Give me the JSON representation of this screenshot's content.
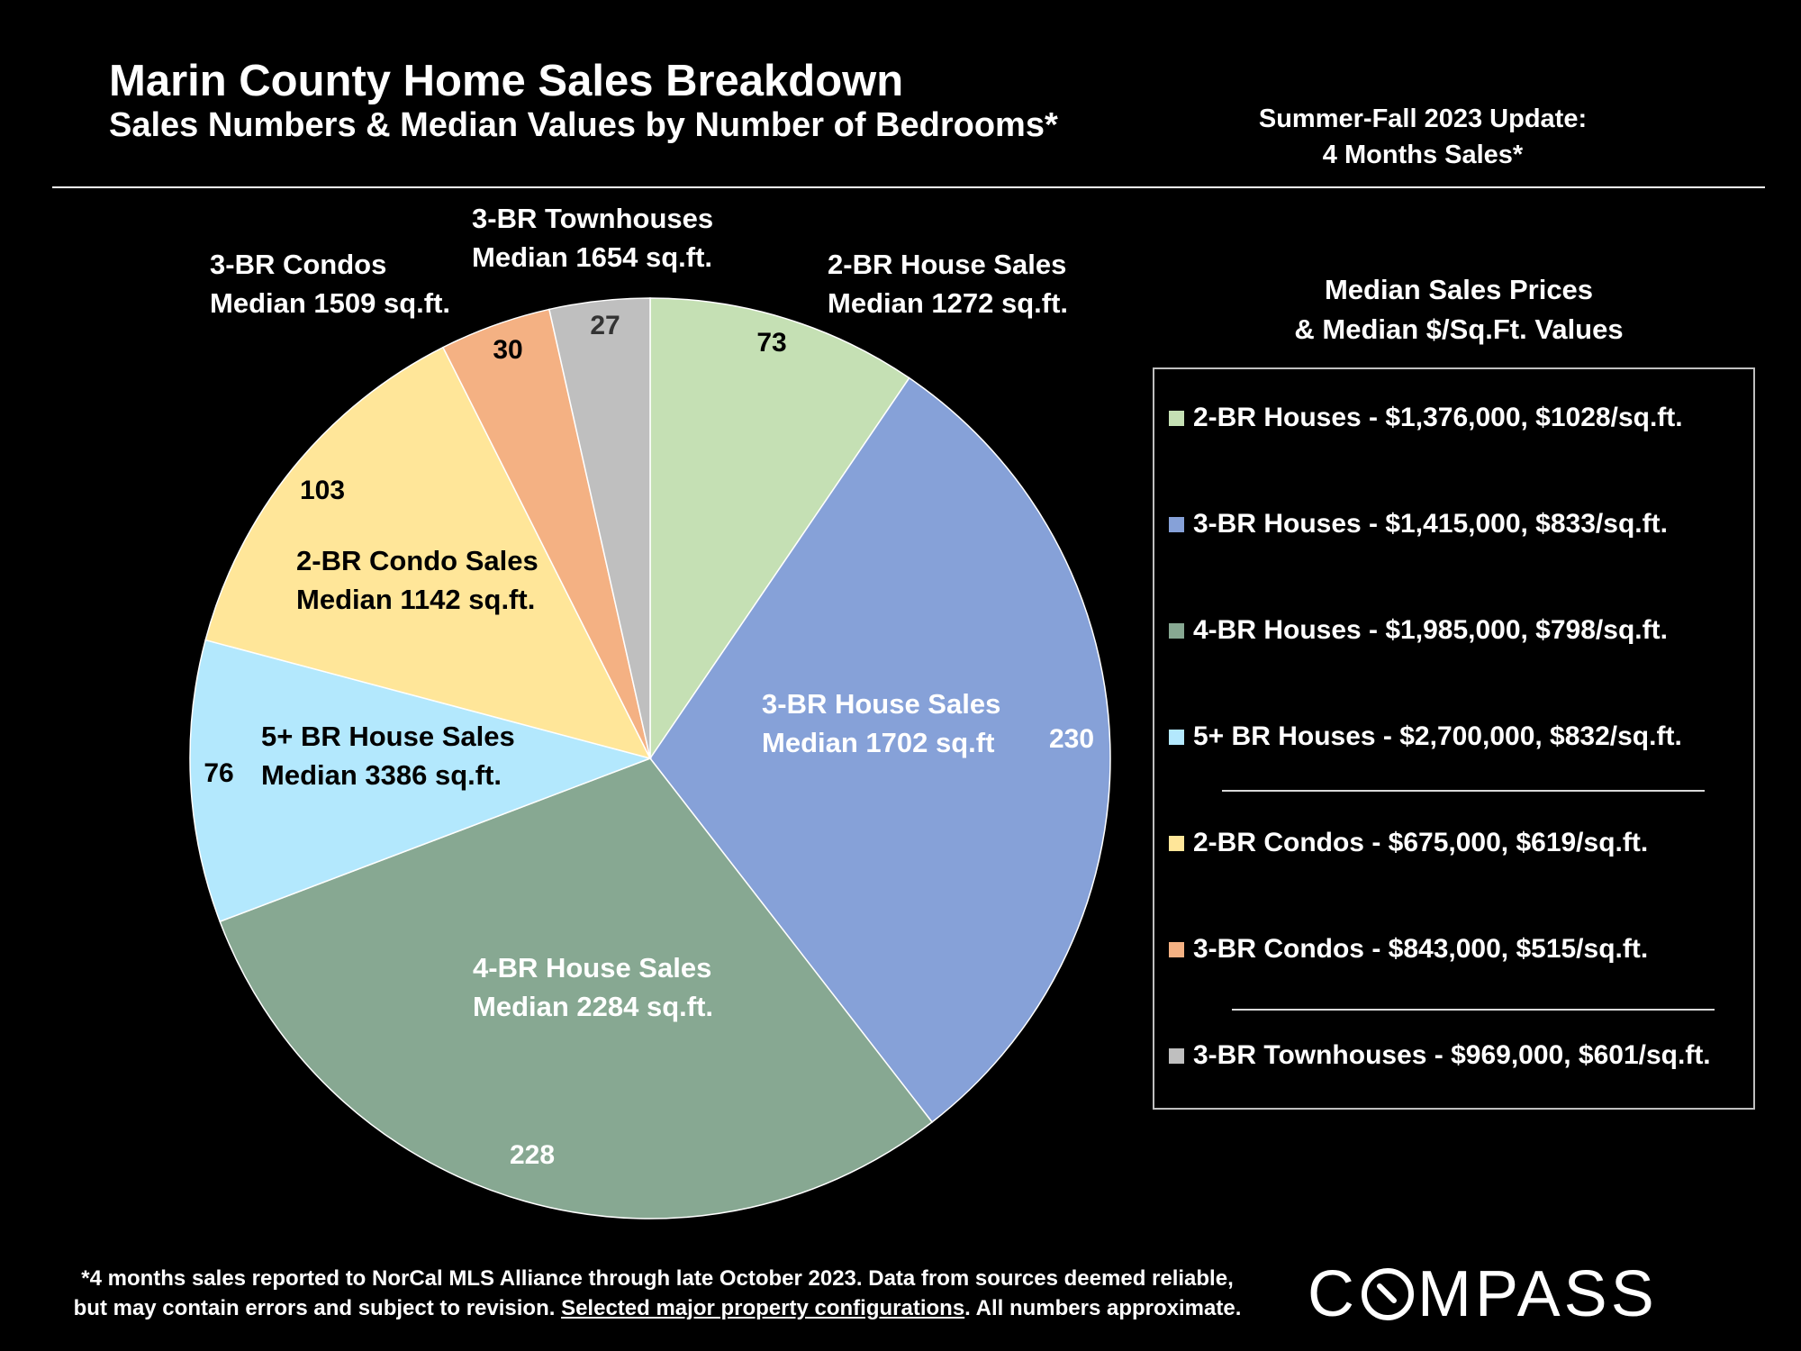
{
  "header": {
    "title": "Marin County Home Sales Breakdown",
    "subtitle": "Sales Numbers & Median Values by Number of Bedrooms*",
    "update_line1": "Summer-Fall 2023 Update:",
    "update_line2": "4 Months Sales*"
  },
  "chart_data": {
    "type": "pie",
    "title": "Marin County Home Sales Breakdown",
    "subtitle": "Sales Numbers & Median Values by Number of Bedrooms*",
    "slices": [
      {
        "category": "2-BR House Sales",
        "value": 73,
        "label_line1": "2-BR House Sales",
        "label_line2": "Median 1272 sq.ft.",
        "color": "#c5e0b4"
      },
      {
        "category": "3-BR House Sales",
        "value": 230,
        "label_line1": "3-BR House Sales",
        "label_line2": "Median 1702 sq.ft",
        "color": "#86a1d8"
      },
      {
        "category": "4-BR House Sales",
        "value": 228,
        "label_line1": "4-BR House Sales",
        "label_line2": "Median 2284 sq.ft.",
        "color": "#87a892"
      },
      {
        "category": "5+ BR House Sales",
        "value": 76,
        "label_line1": "5+ BR House Sales",
        "label_line2": "Median 3386 sq.ft.",
        "color": "#b3e8fd"
      },
      {
        "category": "2-BR Condo Sales",
        "value": 103,
        "label_line1": "2-BR Condo Sales",
        "label_line2": "Median 1142 sq.ft.",
        "color": "#ffe699"
      },
      {
        "category": "3-BR Condos",
        "value": 30,
        "label_line1": "3-BR Condos",
        "label_line2": "Median 1509 sq.ft.",
        "color": "#f4b183"
      },
      {
        "category": "3-BR Townhouses",
        "value": 27,
        "label_line1": "3-BR Townhouses",
        "label_line2": "Median 1654 sq.ft.",
        "color": "#bfbfbf"
      }
    ]
  },
  "legend": {
    "title_line1": "Median Sales Prices",
    "title_line2": "& Median $/Sq.Ft. Values",
    "items": [
      {
        "text": "2-BR Houses - $1,376,000, $1028/sq.ft.",
        "color": "#c5e0b4"
      },
      {
        "text": "3-BR Houses - $1,415,000, $833/sq.ft.",
        "color": "#86a1d8"
      },
      {
        "text": "4-BR Houses - $1,985,000, $798/sq.ft.",
        "color": "#87a892"
      },
      {
        "text": "5+ BR Houses - $2,700,000, $832/sq.ft.",
        "color": "#b3e8fd"
      },
      {
        "text": "2-BR Condos - $675,000, $619/sq.ft.",
        "color": "#ffe699"
      },
      {
        "text": "3-BR Condos - $843,000, $515/sq.ft.",
        "color": "#f4b183"
      },
      {
        "text": "3-BR Townhouses - $969,000, $601/sq.ft.",
        "color": "#bfbfbf"
      }
    ]
  },
  "footnote": {
    "line1": "*4 months sales reported to NorCal MLS Alliance through late October 2023. Data from sources deemed reliable,",
    "line2_pre": "but may contain errors and subject to revision. ",
    "line2_link": "Selected major property configurations",
    "line2_post": ". All numbers approximate."
  },
  "logo": {
    "brand_before": "C",
    "brand_after": "MPASS"
  }
}
